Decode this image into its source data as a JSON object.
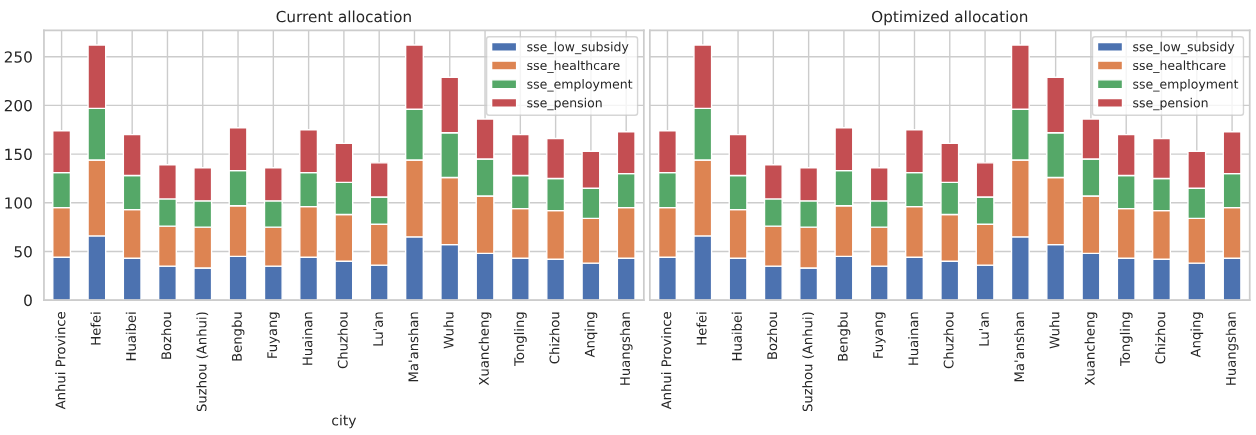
{
  "chart_data": [
    {
      "type": "bar",
      "title": "Current allocation",
      "xlabel": "city",
      "stacked": true,
      "grid": true,
      "legend": "top right",
      "categories": [
        "Anhui Province",
        "Hefei",
        "Huaibei",
        "Bozhou",
        "Suzhou (Anhui)",
        "Bengbu",
        "Fuyang",
        "Huainan",
        "Chuzhou",
        "Lu'an",
        "Ma'anshan",
        "Wuhu",
        "Xuancheng",
        "Tongling",
        "Chizhou",
        "Anqing",
        "Huangshan"
      ],
      "ylim": [
        0,
        277
      ],
      "yticks": [
        0,
        50,
        100,
        150,
        200,
        250
      ],
      "series": [
        {
          "name": "sse_low_subsidy",
          "color": "#4c72b0",
          "values": [
            44,
            66,
            43,
            35,
            33,
            45,
            35,
            44,
            40,
            36,
            65,
            57,
            48,
            43,
            42,
            38,
            43
          ]
        },
        {
          "name": "sse_healthcare",
          "color": "#dd8452",
          "values": [
            51,
            78,
            50,
            41,
            42,
            52,
            40,
            52,
            48,
            42,
            79,
            69,
            59,
            51,
            50,
            46,
            52
          ]
        },
        {
          "name": "sse_employment",
          "color": "#55a868",
          "values": [
            36,
            53,
            35,
            28,
            27,
            36,
            27,
            35,
            33,
            28,
            52,
            46,
            38,
            34,
            33,
            31,
            35
          ]
        },
        {
          "name": "sse_pension",
          "color": "#c44e52",
          "values": [
            43,
            65,
            42,
            35,
            34,
            44,
            34,
            44,
            40,
            35,
            66,
            57,
            41,
            42,
            41,
            38,
            43
          ]
        }
      ]
    },
    {
      "type": "bar",
      "title": "Optimized allocation",
      "stacked": true,
      "grid": true,
      "legend": "top right",
      "tick_labels": "x",
      "categories": [
        "Anhui Province",
        "Hefei",
        "Huaibei",
        "Bozhou",
        "Suzhou (Anhui)",
        "Bengbu",
        "Fuyang",
        "Huainan",
        "Chuzhou",
        "Lu'an",
        "Ma'anshan",
        "Wuhu",
        "Xuancheng",
        "Tongling",
        "Chizhou",
        "Anqing",
        "Huangshan"
      ],
      "ylim": [
        0,
        277
      ],
      "yticks": [
        0,
        50,
        100,
        150,
        200,
        250
      ],
      "series": [
        {
          "name": "sse_low_subsidy",
          "color": "#4c72b0",
          "values": [
            44,
            66,
            43,
            35,
            33,
            45,
            35,
            44,
            40,
            36,
            65,
            57,
            48,
            43,
            42,
            38,
            43
          ]
        },
        {
          "name": "sse_healthcare",
          "color": "#dd8452",
          "values": [
            51,
            78,
            50,
            41,
            42,
            52,
            40,
            52,
            48,
            42,
            79,
            69,
            59,
            51,
            50,
            46,
            52
          ]
        },
        {
          "name": "sse_employment",
          "color": "#55a868",
          "values": [
            36,
            53,
            35,
            28,
            27,
            36,
            27,
            35,
            33,
            28,
            52,
            46,
            38,
            34,
            33,
            31,
            35
          ]
        },
        {
          "name": "sse_pension",
          "color": "#c44e52",
          "values": [
            43,
            65,
            42,
            35,
            34,
            44,
            34,
            44,
            40,
            35,
            66,
            57,
            41,
            42,
            41,
            38,
            43
          ]
        }
      ]
    }
  ]
}
